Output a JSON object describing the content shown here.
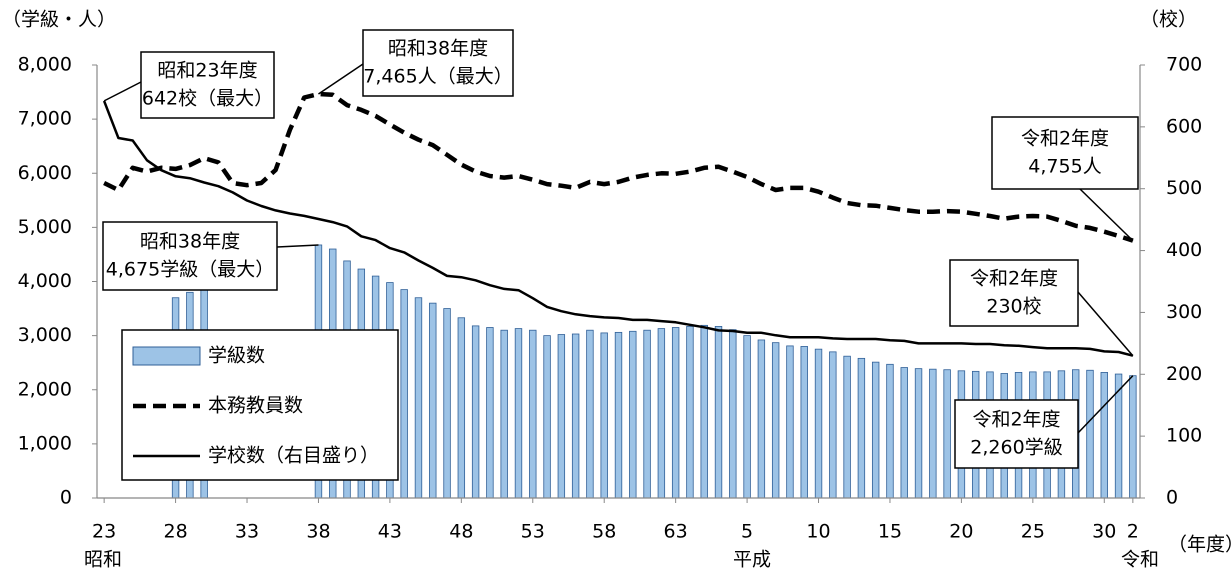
{
  "chart_data": {
    "type": "combo",
    "y_label": "（学級・人）",
    "y2_label": "（校）",
    "x_label": "（年度）",
    "eras": [
      "昭和",
      "平成",
      "令和"
    ],
    "categories": [
      "23",
      null,
      null,
      null,
      null,
      "28",
      null,
      null,
      null,
      null,
      "33",
      null,
      null,
      null,
      null,
      "38",
      null,
      null,
      null,
      null,
      "43",
      null,
      null,
      null,
      null,
      "48",
      null,
      null,
      null,
      null,
      "53",
      null,
      null,
      null,
      null,
      "58",
      null,
      null,
      null,
      null,
      "63",
      null,
      null,
      null,
      null,
      "5",
      null,
      null,
      null,
      null,
      "10",
      null,
      null,
      null,
      null,
      "15",
      null,
      null,
      null,
      null,
      "20",
      null,
      null,
      null,
      null,
      "25",
      null,
      null,
      null,
      null,
      "30",
      null,
      "2"
    ],
    "series": [
      {
        "name": "学級数",
        "type": "bar",
        "color": "#9dc3e6",
        "values": [
          null,
          null,
          null,
          null,
          null,
          3700,
          3800,
          3880,
          null,
          null,
          null,
          null,
          null,
          null,
          null,
          4675,
          4600,
          4380,
          4230,
          4100,
          3980,
          3850,
          3700,
          3600,
          3500,
          3330,
          3180,
          3150,
          3100,
          3130,
          3100,
          3000,
          3020,
          3030,
          3100,
          3050,
          3060,
          3080,
          3100,
          3130,
          3150,
          3170,
          3190,
          3170,
          3110,
          3000,
          2920,
          2870,
          2810,
          2800,
          2750,
          2700,
          2620,
          2580,
          2510,
          2470,
          2410,
          2390,
          2380,
          2370,
          2350,
          2340,
          2330,
          2300,
          2320,
          2330,
          2330,
          2350,
          2370,
          2360,
          2320,
          2290,
          2260
        ]
      },
      {
        "name": "本務教員数",
        "type": "line",
        "style": "dashed",
        "color": "#000000",
        "values": [
          5820,
          5690,
          6100,
          6030,
          6100,
          6080,
          6150,
          6280,
          6200,
          5820,
          5780,
          5820,
          6060,
          6800,
          7400,
          7465,
          7450,
          7260,
          7170,
          7060,
          6900,
          6750,
          6620,
          6520,
          6340,
          6160,
          6030,
          5950,
          5920,
          5950,
          5880,
          5800,
          5770,
          5730,
          5840,
          5800,
          5840,
          5920,
          5970,
          6000,
          5990,
          6030,
          6100,
          6120,
          6030,
          5930,
          5800,
          5690,
          5730,
          5730,
          5660,
          5550,
          5450,
          5410,
          5400,
          5360,
          5320,
          5290,
          5290,
          5300,
          5290,
          5250,
          5210,
          5160,
          5200,
          5210,
          5200,
          5120,
          5030,
          4990,
          4920,
          4840,
          4755
        ]
      },
      {
        "name": "学校数（右目盛り）",
        "type": "line",
        "style": "solid",
        "color": "#000000",
        "axis": "y2",
        "values": [
          642,
          582,
          578,
          546,
          530,
          520,
          517,
          510,
          504,
          494,
          481,
          472,
          465,
          460,
          456,
          451,
          446,
          439,
          423,
          417,
          404,
          397,
          384,
          372,
          359,
          357,
          352,
          344,
          338,
          336,
          323,
          309,
          302,
          297,
          294,
          292,
          291,
          288,
          288,
          286,
          284,
          280,
          276,
          271,
          270,
          267,
          267,
          263,
          260,
          260,
          260,
          258,
          257,
          257,
          257,
          255,
          254,
          250,
          250,
          250,
          250,
          249,
          249,
          247,
          246,
          244,
          242,
          242,
          242,
          241,
          237,
          236,
          230
        ]
      }
    ],
    "ylim": [
      0,
      8000
    ],
    "yticks": [
      0,
      {
        "value": 1000,
        "label": "1,000"
      },
      {
        "value": 2000,
        "label": "2,000"
      },
      {
        "value": 3000,
        "label": "3,000"
      },
      {
        "value": 4000,
        "label": "4,000"
      },
      {
        "value": 5000,
        "label": "5,000"
      },
      {
        "value": 6000,
        "label": "6,000"
      },
      {
        "value": 7000,
        "label": "7,000"
      },
      {
        "value": 8000,
        "label": "8,000"
      }
    ],
    "y2lim": [
      0,
      700
    ],
    "y2ticks": [
      0,
      100,
      200,
      300,
      400,
      500,
      600,
      700
    ],
    "grid": false,
    "legend": "lower-left",
    "annotations": [
      {
        "text": [
          "昭和23年度",
          "642校（最大）"
        ]
      },
      {
        "text": [
          "昭和38年度",
          "7,465人（最大）"
        ]
      },
      {
        "text": [
          "令和2年度",
          "4,755人"
        ]
      },
      {
        "text": [
          "昭和38年度",
          "4,675学級（最大）"
        ]
      },
      {
        "text": [
          "令和2年度",
          "230校"
        ]
      },
      {
        "text": [
          "令和2年度",
          "2,260学級"
        ]
      }
    ]
  }
}
